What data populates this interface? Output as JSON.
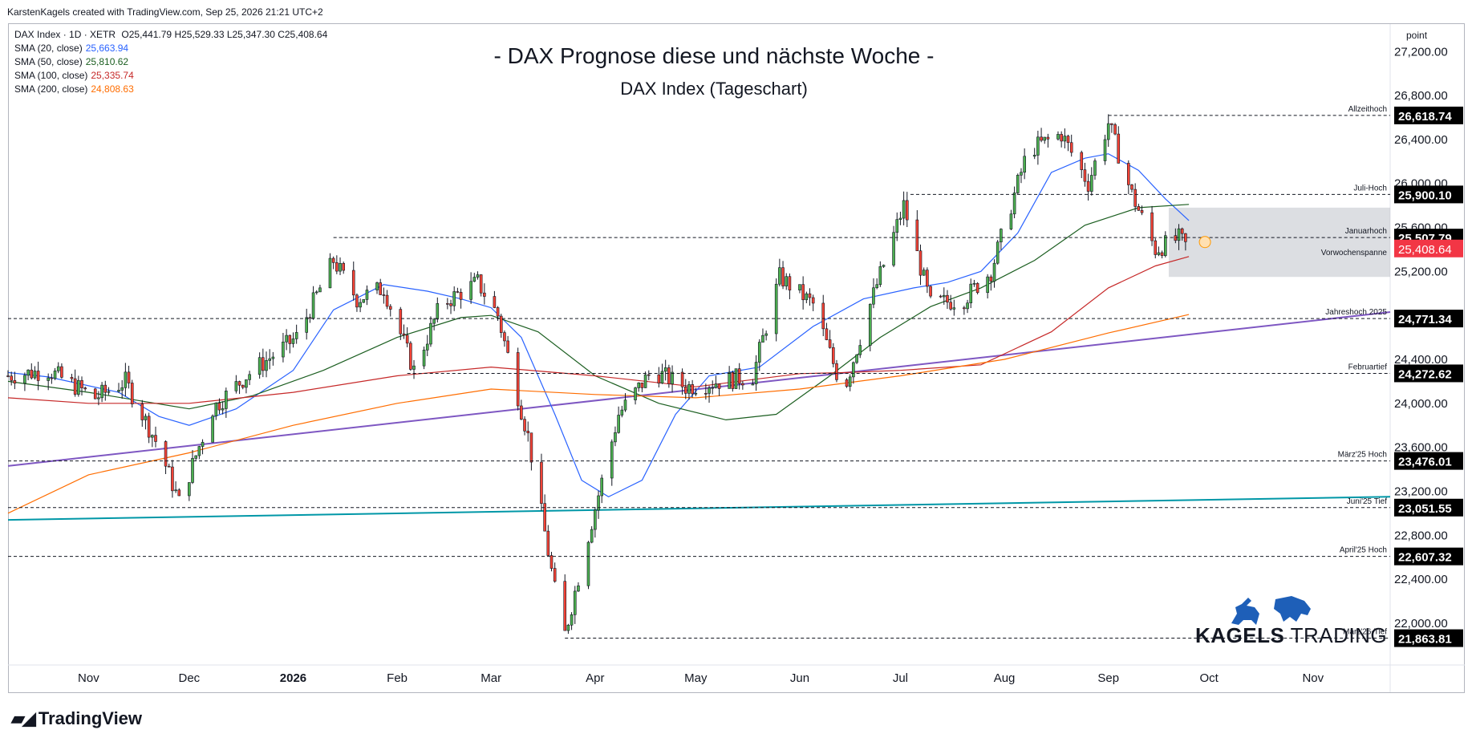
{
  "header": {
    "credit": "KarstenKagels created with TradingView.com, Sep 25, 2026 21:21 UTC+2"
  },
  "legend": {
    "symbol": "DAX Index · 1D · XETR",
    "ohlc": "O25,441.79  H25,529.33  L25,347.30  C25,408.64",
    "sma": [
      {
        "label": "SMA (20, close)",
        "value": "25,663.94",
        "color": "#2962ff"
      },
      {
        "label": "SMA (50, close)",
        "value": "25,810.62",
        "color": "#1b5e20"
      },
      {
        "label": "SMA (100, close)",
        "value": "25,335.74",
        "color": "#c62828"
      },
      {
        "label": "SMA (200, close)",
        "value": "24,808.63",
        "color": "#ff6d00"
      }
    ]
  },
  "titles": {
    "main": "- DAX Prognose diese und nächste Woche -",
    "sub": "DAX Index (Tageschart)"
  },
  "branding": {
    "tradingview": "TradingView",
    "kagels_bold": "KAGELS",
    "kagels_rest": " TRADING"
  },
  "chart_data": {
    "type": "candlestick",
    "ylabel": "point",
    "ylim": [
      21700,
      27450
    ],
    "y_ticks": [
      22000,
      22400,
      22800,
      23200,
      23600,
      24000,
      24400,
      24800,
      25200,
      25600,
      26000,
      26400,
      26800,
      27200
    ],
    "y_tick_labels": [
      "22,000.00",
      "22,400.00",
      "22,800.00",
      "23,200.00",
      "23,600.00",
      "24,000.00",
      "24,400.00",
      "24,800.00",
      "25,200.00",
      "25,600.00",
      "26,000.00",
      "26,400.00",
      "26,800.00",
      "27,200.00"
    ],
    "x_start": "2025-10-08",
    "x_end": "2026-11-24",
    "x_ticks": [
      {
        "label": "Nov",
        "date": "2025-11-01"
      },
      {
        "label": "Dec",
        "date": "2025-12-01"
      },
      {
        "label": "2026",
        "date": "2026-01-01",
        "bold": true
      },
      {
        "label": "Feb",
        "date": "2026-02-01"
      },
      {
        "label": "Mar",
        "date": "2026-03-01"
      },
      {
        "label": "Apr",
        "date": "2026-04-01"
      },
      {
        "label": "May",
        "date": "2026-05-01"
      },
      {
        "label": "Jun",
        "date": "2026-06-01"
      },
      {
        "label": "Jul",
        "date": "2026-07-01"
      },
      {
        "label": "Aug",
        "date": "2026-08-01"
      },
      {
        "label": "Sep",
        "date": "2026-09-01"
      },
      {
        "label": "Oct",
        "date": "2026-10-01"
      },
      {
        "label": "Nov",
        "date": "2026-11-01"
      }
    ],
    "levels": [
      {
        "name": "Allzeithoch",
        "value": 26618.74,
        "label": "26,618.74",
        "from": "2026-09-01"
      },
      {
        "name": "Juli-Hoch",
        "value": 25900.1,
        "label": "25,900.10",
        "from": "2026-07-04"
      },
      {
        "name": "Januarhoch",
        "value": 25507.79,
        "label": "25,507.79",
        "from": "2026-01-13"
      },
      {
        "name": "Jahreshoch 2025",
        "value": 24771.34,
        "label": "24,771.34",
        "from": "2025-10-08"
      },
      {
        "name": "Februartief",
        "value": 24272.62,
        "label": "24,272.62",
        "from": "2026-02-04"
      },
      {
        "name": "März'25 Hoch",
        "value": 23476.01,
        "label": "23,476.01",
        "from": "2025-10-08"
      },
      {
        "name": "Juni'25 Tief",
        "value": 23051.55,
        "label": "23,051.55",
        "from": "2025-10-08"
      },
      {
        "name": "April'25 Hoch",
        "value": 22607.32,
        "label": "22,607.32",
        "from": "2025-10-08"
      },
      {
        "name": "März'26-Tief",
        "value": 21863.81,
        "label": "21,863.81",
        "from": "2026-03-23"
      }
    ],
    "current": {
      "value": 25408.64,
      "label": "25,408.64",
      "color": "#f23645",
      "name": "Vorwochenspanne"
    },
    "range_box": {
      "from": "2026-09-19",
      "high": 25780,
      "low": 25150
    },
    "trendlines": [
      {
        "name": "purple",
        "color": "#7e57c2",
        "from": [
          "2025-10-08",
          23430
        ],
        "to": [
          "2026-11-24",
          24830
        ]
      },
      {
        "name": "teal",
        "color": "#0097a7",
        "from": [
          "2025-10-08",
          22940
        ],
        "to": [
          "2026-11-24",
          23150
        ]
      }
    ],
    "sma_paths": [
      {
        "name": "SMA 20",
        "color": "#2962ff",
        "points": [
          [
            "2025-10-08",
            24280
          ],
          [
            "2025-10-20",
            24240
          ],
          [
            "2025-11-10",
            24100
          ],
          [
            "2025-11-22",
            23880
          ],
          [
            "2025-12-01",
            23800
          ],
          [
            "2025-12-15",
            23950
          ],
          [
            "2026-01-01",
            24300
          ],
          [
            "2026-01-13",
            24850
          ],
          [
            "2026-01-28",
            25080
          ],
          [
            "2026-02-10",
            25020
          ],
          [
            "2026-02-20",
            24950
          ],
          [
            "2026-03-01",
            24870
          ],
          [
            "2026-03-10",
            24600
          ],
          [
            "2026-03-20",
            23900
          ],
          [
            "2026-03-28",
            23300
          ],
          [
            "2026-04-05",
            23150
          ],
          [
            "2026-04-15",
            23300
          ],
          [
            "2026-04-25",
            23900
          ],
          [
            "2026-05-05",
            24250
          ],
          [
            "2026-05-20",
            24330
          ],
          [
            "2026-06-05",
            24700
          ],
          [
            "2026-06-20",
            24950
          ],
          [
            "2026-07-05",
            25050
          ],
          [
            "2026-07-15",
            25100
          ],
          [
            "2026-07-25",
            25200
          ],
          [
            "2026-08-05",
            25550
          ],
          [
            "2026-08-15",
            26100
          ],
          [
            "2026-08-25",
            26230
          ],
          [
            "2026-09-01",
            26270
          ],
          [
            "2026-09-10",
            26120
          ],
          [
            "2026-09-18",
            25860
          ],
          [
            "2026-09-25",
            25663
          ]
        ]
      },
      {
        "name": "SMA 50",
        "color": "#1b5e20",
        "points": [
          [
            "2025-10-08",
            24200
          ],
          [
            "2025-11-01",
            24100
          ],
          [
            "2025-12-01",
            23950
          ],
          [
            "2025-12-20",
            24070
          ],
          [
            "2026-01-10",
            24300
          ],
          [
            "2026-02-01",
            24600
          ],
          [
            "2026-02-20",
            24780
          ],
          [
            "2026-03-01",
            24800
          ],
          [
            "2026-03-15",
            24650
          ],
          [
            "2026-04-01",
            24250
          ],
          [
            "2026-04-20",
            24000
          ],
          [
            "2026-05-10",
            23850
          ],
          [
            "2026-05-25",
            23900
          ],
          [
            "2026-06-10",
            24250
          ],
          [
            "2026-06-25",
            24600
          ],
          [
            "2026-07-10",
            24880
          ],
          [
            "2026-07-25",
            25050
          ],
          [
            "2026-08-10",
            25300
          ],
          [
            "2026-08-25",
            25620
          ],
          [
            "2026-09-10",
            25780
          ],
          [
            "2026-09-25",
            25810
          ]
        ]
      },
      {
        "name": "SMA 100",
        "color": "#c62828",
        "points": [
          [
            "2025-10-08",
            24050
          ],
          [
            "2025-11-01",
            24000
          ],
          [
            "2025-12-01",
            24000
          ],
          [
            "2026-01-01",
            24100
          ],
          [
            "2026-02-01",
            24250
          ],
          [
            "2026-03-01",
            24330
          ],
          [
            "2026-04-01",
            24250
          ],
          [
            "2026-05-01",
            24150
          ],
          [
            "2026-06-01",
            24270
          ],
          [
            "2026-06-15",
            24280
          ],
          [
            "2026-07-01",
            24300
          ],
          [
            "2026-07-25",
            24350
          ],
          [
            "2026-08-15",
            24650
          ],
          [
            "2026-09-01",
            25050
          ],
          [
            "2026-09-15",
            25250
          ],
          [
            "2026-09-25",
            25335
          ]
        ]
      },
      {
        "name": "SMA 200",
        "color": "#ff6d00",
        "points": [
          [
            "2025-10-08",
            23000
          ],
          [
            "2025-11-01",
            23350
          ],
          [
            "2025-12-01",
            23550
          ],
          [
            "2026-01-01",
            23800
          ],
          [
            "2026-02-01",
            24000
          ],
          [
            "2026-03-01",
            24130
          ],
          [
            "2026-04-01",
            24080
          ],
          [
            "2026-05-01",
            24050
          ],
          [
            "2026-06-01",
            24130
          ],
          [
            "2026-07-01",
            24250
          ],
          [
            "2026-08-01",
            24400
          ],
          [
            "2026-09-01",
            24640
          ],
          [
            "2026-09-25",
            24808
          ]
        ]
      }
    ],
    "candle_anchors": [
      [
        "2025-10-08",
        24250
      ],
      [
        "2025-10-20",
        24300
      ],
      [
        "2025-11-03",
        24050
      ],
      [
        "2025-11-12",
        24200
      ],
      [
        "2025-11-22",
        23600
      ],
      [
        "2025-11-28",
        23100
      ],
      [
        "2025-12-08",
        23950
      ],
      [
        "2025-12-18",
        24250
      ],
      [
        "2026-01-02",
        24600
      ],
      [
        "2026-01-13",
        25300
      ],
      [
        "2026-01-20",
        24950
      ],
      [
        "2026-01-28",
        25050
      ],
      [
        "2026-02-06",
        24300
      ],
      [
        "2026-02-14",
        24900
      ],
      [
        "2026-02-25",
        25100
      ],
      [
        "2026-03-03",
        24800
      ],
      [
        "2026-03-12",
        23700
      ],
      [
        "2026-03-20",
        22300
      ],
      [
        "2026-03-23",
        21900
      ],
      [
        "2026-03-30",
        22800
      ],
      [
        "2026-04-08",
        23900
      ],
      [
        "2026-04-18",
        24300
      ],
      [
        "2026-04-28",
        24150
      ],
      [
        "2026-05-08",
        24200
      ],
      [
        "2026-05-18",
        24250
      ],
      [
        "2026-05-26",
        25150
      ],
      [
        "2026-06-05",
        24900
      ],
      [
        "2026-06-14",
        24100
      ],
      [
        "2026-06-22",
        24900
      ],
      [
        "2026-07-02",
        25800
      ],
      [
        "2026-07-10",
        24900
      ],
      [
        "2026-07-20",
        24950
      ],
      [
        "2026-07-28",
        25200
      ],
      [
        "2026-08-08",
        26300
      ],
      [
        "2026-08-18",
        26450
      ],
      [
        "2026-08-26",
        26000
      ],
      [
        "2026-09-01",
        26550
      ],
      [
        "2026-09-08",
        25900
      ],
      [
        "2026-09-15",
        25400
      ],
      [
        "2026-09-22",
        25500
      ],
      [
        "2026-09-25",
        25408
      ]
    ]
  }
}
